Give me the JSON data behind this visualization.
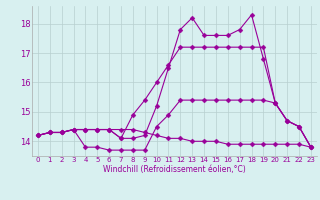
{
  "x": [
    0,
    1,
    2,
    3,
    4,
    5,
    6,
    7,
    8,
    9,
    10,
    11,
    12,
    13,
    14,
    15,
    16,
    17,
    18,
    19,
    20,
    21,
    22,
    23
  ],
  "line1": [
    14.2,
    14.3,
    14.3,
    14.4,
    14.4,
    14.4,
    14.4,
    14.1,
    14.1,
    14.2,
    15.2,
    16.5,
    17.8,
    18.2,
    17.6,
    17.6,
    17.6,
    17.8,
    18.3,
    16.8,
    15.3,
    14.7,
    14.5,
    13.8
  ],
  "line2": [
    14.2,
    14.3,
    14.3,
    14.4,
    13.8,
    13.8,
    13.7,
    13.7,
    13.7,
    13.7,
    14.5,
    14.9,
    15.4,
    15.4,
    15.4,
    15.4,
    15.4,
    15.4,
    15.4,
    15.4,
    15.3,
    14.7,
    14.5,
    13.8
  ],
  "line3": [
    14.2,
    14.3,
    14.3,
    14.4,
    14.4,
    14.4,
    14.4,
    14.1,
    14.9,
    15.4,
    16.0,
    16.6,
    17.2,
    17.2,
    17.2,
    17.2,
    17.2,
    17.2,
    17.2,
    17.2,
    15.3,
    14.7,
    14.5,
    13.8
  ],
  "line4": [
    14.2,
    14.3,
    14.3,
    14.4,
    14.4,
    14.4,
    14.4,
    14.4,
    14.4,
    14.3,
    14.2,
    14.1,
    14.1,
    14.0,
    14.0,
    14.0,
    13.9,
    13.9,
    13.9,
    13.9,
    13.9,
    13.9,
    13.9,
    13.8
  ],
  "color": "#990099",
  "bg_color": "#d8f0f0",
  "grid_color": "#b8d0d0",
  "xlabel": "Windchill (Refroidissement éolien,°C)",
  "ylim": [
    13.5,
    18.6
  ],
  "xlim": [
    -0.5,
    23.5
  ],
  "yticks": [
    14,
    15,
    16,
    17,
    18
  ],
  "xticks": [
    0,
    1,
    2,
    3,
    4,
    5,
    6,
    7,
    8,
    9,
    10,
    11,
    12,
    13,
    14,
    15,
    16,
    17,
    18,
    19,
    20,
    21,
    22,
    23
  ],
  "marker": "D",
  "markersize": 2.5,
  "linewidth": 0.8,
  "tick_fontsize": 5.0,
  "xlabel_fontsize": 5.5,
  "ytick_fontsize": 6.0
}
